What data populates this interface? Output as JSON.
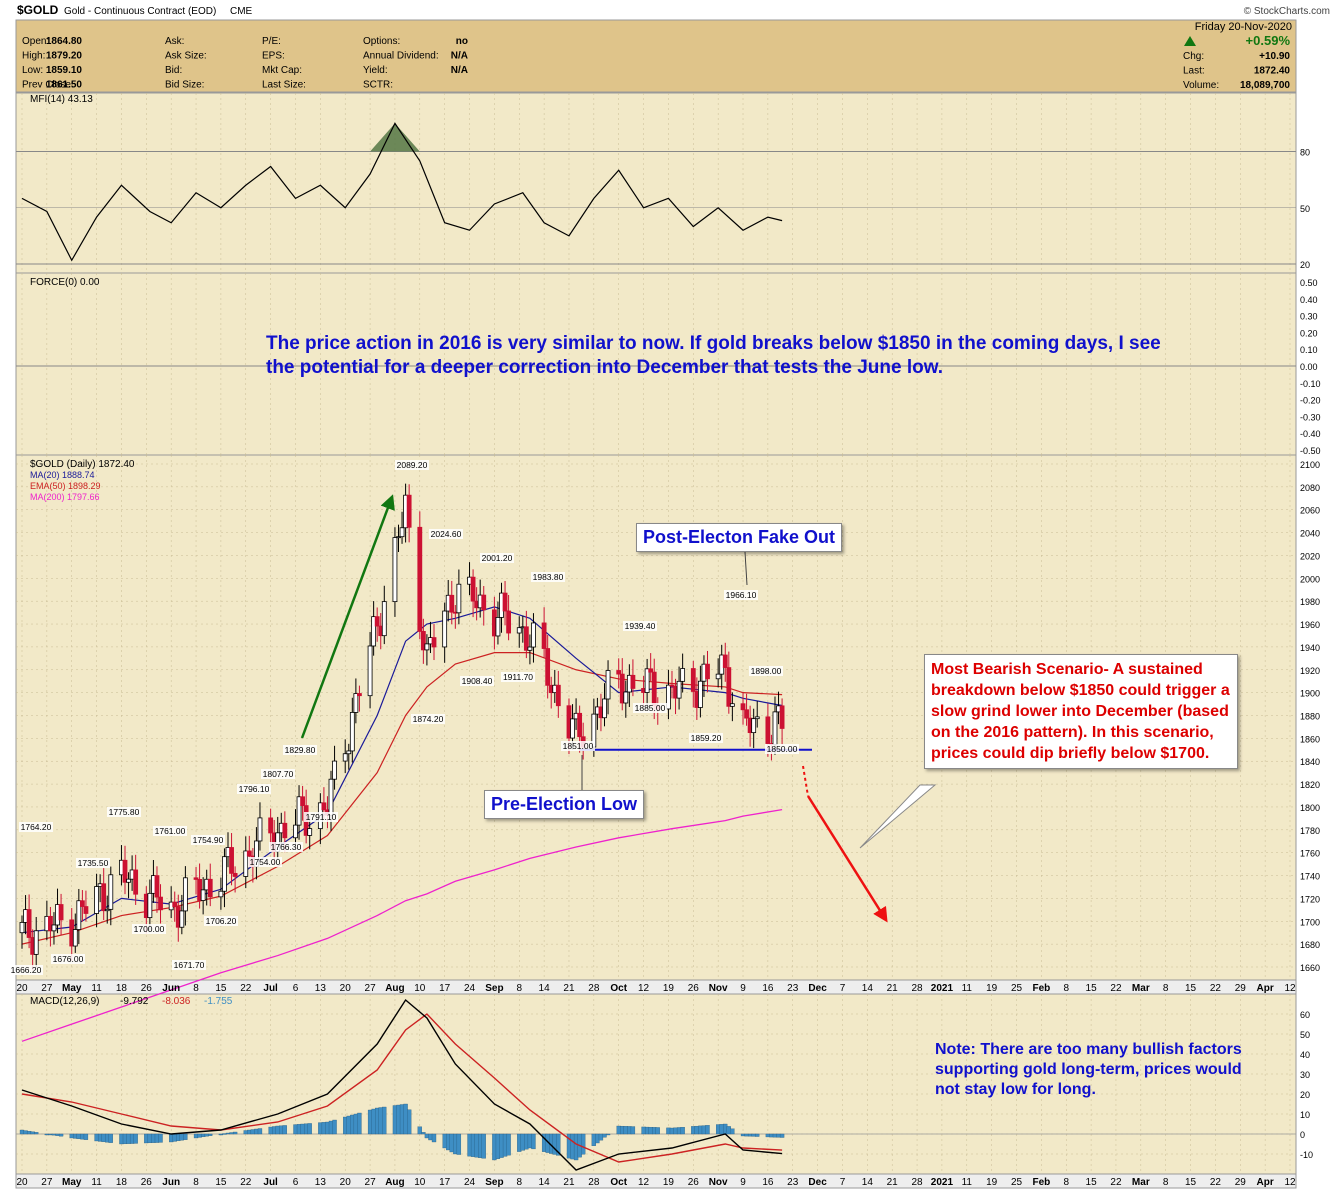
{
  "header": {
    "symbol": "$GOLD",
    "description": "Gold - Continuous Contract (EOD)",
    "exchange": "CME",
    "date": "Friday  20-Nov-2020",
    "watermark": "© StockCharts.com",
    "pct_change": "+0.59%",
    "left_fields": [
      {
        "label": "Open:",
        "value": "1864.80"
      },
      {
        "label": "High:",
        "value": "1879.20"
      },
      {
        "label": "Low:",
        "value": "1859.10"
      },
      {
        "label": "Prev Close:",
        "value": "1861.50"
      }
    ],
    "mid_fields": [
      {
        "label": "Ask:",
        "value": ""
      },
      {
        "label": "Ask Size:",
        "value": ""
      },
      {
        "label": "Bid:",
        "value": ""
      },
      {
        "label": "Bid Size:",
        "value": ""
      }
    ],
    "mid2_fields": [
      {
        "label": "P/E:",
        "value": ""
      },
      {
        "label": "EPS:",
        "value": ""
      },
      {
        "label": "Mkt Cap:",
        "value": ""
      },
      {
        "label": "Last Size:",
        "value": ""
      }
    ],
    "opt_fields": [
      {
        "label": "Options:",
        "value": "no"
      },
      {
        "label": "Annual Dividend:",
        "value": "N/A"
      },
      {
        "label": "Yield:",
        "value": "N/A"
      },
      {
        "label": "SCTR:",
        "value": ""
      }
    ],
    "right_fields": [
      {
        "label": "Chg:",
        "value": "+10.90"
      },
      {
        "label": "Last:",
        "value": "1872.40"
      },
      {
        "label": "Volume:",
        "value": "18,089,700"
      }
    ]
  },
  "annotations": {
    "main_note": "The price action in 2016 is very similar to now. If gold breaks below $1850 in the coming days, I see the potential for a deeper correction into December that tests the June low.",
    "fakeout": "Post-Electon Fake Out",
    "pre_election": "Pre-Election Low",
    "bearish": "Most Bearish Scenario- A sustained breakdown below $1850 could trigger a slow grind lower into December (based on the 2016 pattern). In this scenario, prices could dip briefly below $1700.",
    "note": "Note: There are too many bullish factors supporting gold long-term, prices would not stay low for long."
  },
  "colors": {
    "panel_bg": "#f2e9c8",
    "header_bg": "#dfc48a",
    "up_candle": "#000000",
    "down_candle": "#cc1133",
    "ma20": "#1a1a99",
    "ema50": "#cc2222",
    "ma200": "#ee22cc",
    "macd_hist": "#3e8ec4",
    "arrow_up": "#117711",
    "arrow_down": "#ee1111"
  },
  "chart_data": [
    {
      "type": "line",
      "name": "MFI(14) 43.13",
      "label": "MFI(14) 43.13",
      "yticks": [
        20,
        50,
        80
      ],
      "ylim": [
        20,
        100
      ],
      "x_dates": [
        "2020-04-20",
        "2020-04-27",
        "2020-05-04",
        "2020-05-11",
        "2020-05-18",
        "2020-05-26",
        "2020-06-01",
        "2020-06-08",
        "2020-06-15",
        "2020-06-22",
        "2020-06-29",
        "2020-07-06",
        "2020-07-13",
        "2020-07-20",
        "2020-07-27",
        "2020-08-03",
        "2020-08-10",
        "2020-08-17",
        "2020-08-24",
        "2020-08-31",
        "2020-09-08",
        "2020-09-14",
        "2020-09-21",
        "2020-09-28",
        "2020-10-05",
        "2020-10-12",
        "2020-10-19",
        "2020-10-26",
        "2020-11-02",
        "2020-11-09",
        "2020-11-16",
        "2020-11-20"
      ],
      "values": [
        55,
        48,
        22,
        45,
        62,
        48,
        42,
        58,
        50,
        62,
        72,
        55,
        62,
        50,
        68,
        95,
        75,
        42,
        38,
        52,
        58,
        42,
        35,
        55,
        70,
        50,
        55,
        40,
        50,
        38,
        45,
        43.13
      ]
    },
    {
      "type": "line",
      "name": "FORCE(0) 0.00",
      "label": "FORCE(0) 0.00",
      "yticks": [
        "0.50",
        "0.40",
        "0.30",
        "0.20",
        "0.10",
        "0.00",
        "-0.10",
        "-0.20",
        "-0.30",
        "-0.40",
        "-0.50"
      ],
      "ylim": [
        -0.5,
        0.5
      ],
      "values": [
        0
      ]
    },
    {
      "type": "candlestick",
      "title": "$GOLD (Daily) 1872.40",
      "legend": [
        "MA(20) 1888.74",
        "EMA(50) 1898.29",
        "MA(200) 1797.66"
      ],
      "ylim": [
        1650,
        2100
      ],
      "ytick_labels": [
        "2100",
        "2080",
        "2060",
        "2040",
        "2020",
        "2000",
        "1980",
        "1960",
        "1940",
        "1920",
        "1900",
        "1880",
        "1860",
        "1840",
        "1820",
        "1800",
        "1780",
        "1760",
        "1740",
        "1720",
        "1700",
        "1680",
        "1660"
      ],
      "xtick_labels": [
        "20",
        "27",
        "May",
        "11",
        "18",
        "26",
        "Jun",
        "8",
        "15",
        "22",
        "Jul",
        "6",
        "13",
        "20",
        "27",
        "Aug",
        "10",
        "17",
        "24",
        "Sep",
        "8",
        "14",
        "21",
        "28",
        "Oct",
        "12",
        "19",
        "26",
        "Nov",
        "9",
        "16",
        "23",
        "Dec",
        "7",
        "14",
        "21",
        "28",
        "2021",
        "11",
        "19",
        "25",
        "Feb",
        "8",
        "15",
        "22",
        "Mar",
        "8",
        "15",
        "22",
        "29",
        "Apr",
        "12"
      ],
      "x_dates": [
        "2020-04-20",
        "2020-05-04",
        "2020-05-18",
        "2020-06-01",
        "2020-06-15",
        "2020-07-01",
        "2020-07-15",
        "2020-07-29",
        "2020-08-06",
        "2020-08-12",
        "2020-08-20",
        "2020-08-31",
        "2020-09-10",
        "2020-09-23",
        "2020-10-05",
        "2020-10-20",
        "2020-11-04",
        "2020-11-09",
        "2020-11-20"
      ],
      "close": [
        1690,
        1700,
        1740,
        1710,
        1740,
        1780,
        1800,
        1960,
        2060,
        1930,
        1990,
        1970,
        1950,
        1860,
        1910,
        1900,
        1920,
        1870,
        1872.4
      ],
      "ma20": [
        1690,
        1695,
        1720,
        1715,
        1728,
        1765,
        1795,
        1880,
        1945,
        1960,
        1965,
        1975,
        1965,
        1930,
        1900,
        1905,
        1900,
        1895,
        1888.74
      ],
      "ema50": [
        1680,
        1690,
        1705,
        1712,
        1722,
        1748,
        1775,
        1830,
        1880,
        1905,
        1925,
        1935,
        1935,
        1920,
        1912,
        1908,
        1905,
        1900,
        1898.29
      ],
      "ma200": [
        1595,
        1610,
        1625,
        1640,
        1655,
        1670,
        1685,
        1705,
        1718,
        1724,
        1735,
        1745,
        1755,
        1765,
        1773,
        1781,
        1788,
        1792,
        1797.66
      ],
      "price_labels": [
        "2089.20",
        "2024.60",
        "2001.20",
        "1983.80",
        "1966.10",
        "1939.40",
        "1898.00",
        "1908.40",
        "1911.70",
        "1885.00",
        "1874.20",
        "1859.20",
        "1850.00",
        "1851.00",
        "1829.80",
        "1807.70",
        "1796.10",
        "1791.10",
        "1775.80",
        "1766.30",
        "1764.20",
        "1761.00",
        "1754.90",
        "1754.00",
        "1735.50",
        "1706.20",
        "1700.00",
        "1676.00",
        "1671.70",
        "1666.20"
      ],
      "support_level": 1850
    },
    {
      "type": "area",
      "name": "MACD(12,26,9)",
      "values_text": [
        "-9.792",
        "-8.036",
        "-1.755"
      ],
      "yticks": [
        "60",
        "50",
        "40",
        "30",
        "20",
        "10",
        "0",
        "-10"
      ],
      "ylim": [
        -15,
        65
      ],
      "x_dates": [
        "2020-04-20",
        "2020-05-04",
        "2020-05-18",
        "2020-06-01",
        "2020-06-15",
        "2020-07-01",
        "2020-07-15",
        "2020-07-29",
        "2020-08-06",
        "2020-08-12",
        "2020-08-20",
        "2020-08-31",
        "2020-09-10",
        "2020-09-23",
        "2020-10-05",
        "2020-10-20",
        "2020-11-04",
        "2020-11-09",
        "2020-11-20"
      ],
      "macd": [
        22,
        14,
        5,
        0,
        2,
        10,
        20,
        45,
        67,
        58,
        35,
        15,
        5,
        -18,
        -10,
        -7,
        0,
        -8,
        -9.792
      ],
      "signal": [
        20,
        16,
        10,
        4,
        2,
        6,
        14,
        32,
        52,
        60,
        45,
        28,
        12,
        -5,
        -14,
        -10,
        -5,
        -7,
        -8.036
      ],
      "histogram": [
        2,
        -2,
        -5,
        -4,
        0,
        4,
        6,
        13,
        15,
        -2,
        -10,
        -13,
        -7,
        -13,
        4,
        3,
        5,
        -1,
        -1.755
      ]
    }
  ]
}
